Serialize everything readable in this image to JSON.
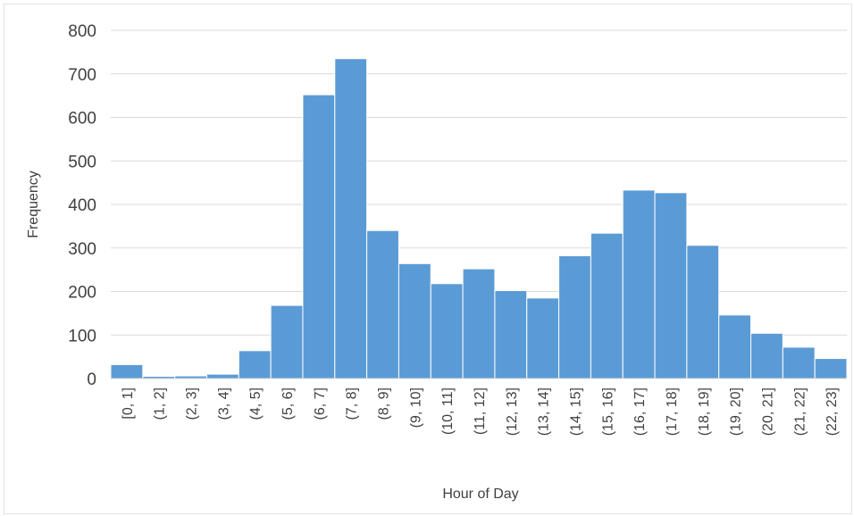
{
  "chart_data": {
    "type": "bar",
    "title": "",
    "xlabel": "Hour of Day",
    "ylabel": "Frequency",
    "ylim": [
      0,
      800
    ],
    "yticks": [
      0,
      100,
      200,
      300,
      400,
      500,
      600,
      700,
      800
    ],
    "grid": true,
    "legend": "none",
    "bar_color": "#5b9bd5",
    "categories": [
      "[0, 1]",
      "(1, 2]",
      "(2, 3]",
      "(3, 4]",
      "(4, 5]",
      "(5, 6]",
      "(6, 7]",
      "(7, 8]",
      "(8, 9]",
      "(9, 10]",
      "(10, 11]",
      "(11, 12]",
      "(12, 13]",
      "(13, 14]",
      "(14, 15]",
      "(15, 16]",
      "(16, 17]",
      "(17, 18]",
      "(18, 19]",
      "(19, 20]",
      "(20, 21]",
      "(21, 22]",
      "(22, 23]"
    ],
    "values": [
      32,
      5,
      6,
      10,
      64,
      168,
      652,
      735,
      340,
      264,
      218,
      252,
      202,
      185,
      282,
      334,
      433,
      427,
      306,
      146,
      104,
      72,
      46
    ]
  }
}
